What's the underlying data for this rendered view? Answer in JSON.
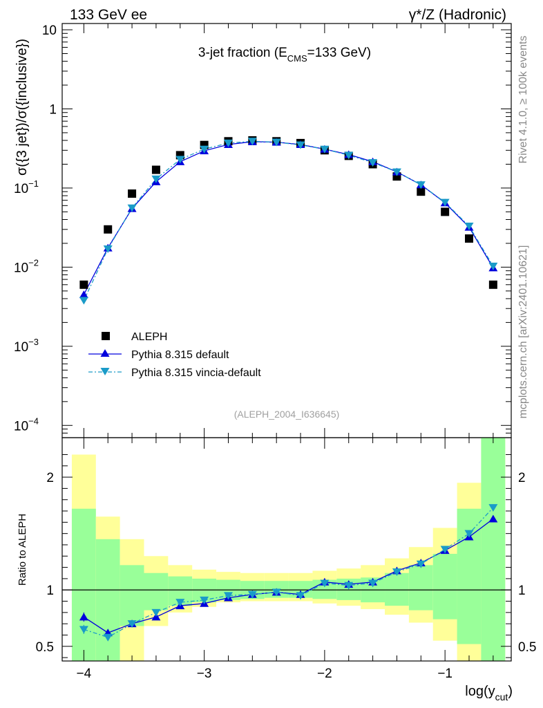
{
  "header": {
    "left": "133 GeV ee",
    "right": "γ*/Z (Hadronic)"
  },
  "side_labels": {
    "rivet": "Rivet 4.1.0, ≥ 100k events",
    "mcplots": "mcplots.cern.ch [arXiv:2401.10621]"
  },
  "chart_data": [
    {
      "type": "scatter",
      "title": "3-jet fraction (E",
      "title_sub": "CMS",
      "title_tail": "=133 GeV)",
      "ylabel": "σ({3 jet})/σ({inclusive})",
      "yscale": "log",
      "ylim": [
        7e-05,
        12
      ],
      "xlim": [
        -4.18,
        -0.45
      ],
      "analysis_tag": "(ALEPH_2004_I636645)",
      "y_ticks": [
        {
          "value": 10,
          "label": "10"
        },
        {
          "value": 1,
          "label": "1"
        },
        {
          "value": 0.1,
          "label": "10",
          "exp": "−1"
        },
        {
          "value": 0.01,
          "label": "10",
          "exp": "−2"
        },
        {
          "value": 0.001,
          "label": "10",
          "exp": "−3"
        },
        {
          "value": 0.0001,
          "label": "10",
          "exp": "−4"
        }
      ],
      "legend_position": "lower-left",
      "x": [
        -4.0,
        -3.8,
        -3.6,
        -3.4,
        -3.2,
        -3.0,
        -2.8,
        -2.6,
        -2.4,
        -2.2,
        -2.0,
        -1.8,
        -1.6,
        -1.4,
        -1.2,
        -1.0,
        -0.8,
        -0.6
      ],
      "series": [
        {
          "name": "ALEPH",
          "marker": "square",
          "color": "#000000",
          "values": [
            0.006,
            0.03,
            0.085,
            0.17,
            0.26,
            0.35,
            0.39,
            0.4,
            0.39,
            0.37,
            0.3,
            0.255,
            0.2,
            0.14,
            0.09,
            0.05,
            0.023,
            0.006
          ]
        },
        {
          "name": "Pythia 8.315 default",
          "marker": "triangle-up",
          "line": "solid",
          "color": "#0000dd",
          "values": [
            0.0045,
            0.0175,
            0.055,
            0.12,
            0.215,
            0.295,
            0.355,
            0.385,
            0.38,
            0.355,
            0.31,
            0.265,
            0.215,
            0.16,
            0.11,
            0.065,
            0.032,
            0.0098
          ]
        },
        {
          "name": "Pythia 8.315 vincia-default",
          "marker": "triangle-down",
          "line": "dashdot",
          "color": "#1a9bc8",
          "values": [
            0.0038,
            0.017,
            0.056,
            0.13,
            0.23,
            0.31,
            0.37,
            0.39,
            0.38,
            0.35,
            0.31,
            0.26,
            0.21,
            0.16,
            0.11,
            0.066,
            0.033,
            0.0103
          ]
        }
      ]
    },
    {
      "type": "line",
      "ylabel": "Ratio to ALEPH",
      "xlabel": "log(y",
      "xlabel_sub": "cut",
      "xlabel_tail": ")",
      "ylim": [
        0.37,
        2.35
      ],
      "xlim": [
        -4.18,
        -0.45
      ],
      "x_ticks": [
        {
          "value": -4,
          "label": "−4"
        },
        {
          "value": -3,
          "label": "−3"
        },
        {
          "value": -2,
          "label": "−2"
        },
        {
          "value": -1,
          "label": "−1"
        }
      ],
      "y_ticks": [
        {
          "value": 2,
          "label": "2"
        },
        {
          "value": 1,
          "label": "1"
        },
        {
          "value": 0.5,
          "label": "0.5"
        }
      ],
      "reference_line": 1,
      "bin_edges": [
        -4.1,
        -3.9,
        -3.7,
        -3.5,
        -3.3,
        -3.1,
        -2.9,
        -2.7,
        -2.5,
        -2.3,
        -2.1,
        -1.9,
        -1.7,
        -1.5,
        -1.3,
        -1.1,
        -0.9,
        -0.7,
        -0.5
      ],
      "band_green": {
        "low": [
          0.37,
          0.37,
          0.68,
          0.82,
          0.86,
          0.89,
          0.91,
          0.92,
          0.93,
          0.93,
          0.92,
          0.91,
          0.89,
          0.86,
          0.82,
          0.74,
          0.52,
          0.37
        ],
        "high": [
          1.72,
          1.45,
          1.22,
          1.15,
          1.12,
          1.1,
          1.09,
          1.08,
          1.08,
          1.08,
          1.09,
          1.1,
          1.11,
          1.15,
          1.22,
          1.32,
          1.72,
          2.35
        ]
      },
      "band_yellow": {
        "low": [
          0.37,
          0.37,
          0.37,
          0.68,
          0.8,
          0.85,
          0.89,
          0.9,
          0.9,
          0.9,
          0.88,
          0.86,
          0.83,
          0.78,
          0.71,
          0.55,
          0.37,
          0.37
        ],
        "high": [
          2.2,
          1.65,
          1.45,
          1.3,
          1.22,
          1.18,
          1.16,
          1.15,
          1.15,
          1.15,
          1.17,
          1.19,
          1.22,
          1.28,
          1.38,
          1.55,
          1.95,
          2.35
        ]
      },
      "series": [
        {
          "name": "Pythia 8.315 default",
          "color": "#0000dd",
          "values": [
            0.76,
            0.62,
            0.7,
            0.76,
            0.86,
            0.88,
            0.93,
            0.96,
            0.98,
            0.96,
            1.07,
            1.05,
            1.07,
            1.17,
            1.24,
            1.35,
            1.47,
            1.63
          ],
          "errors": [
            0.04,
            0.01,
            0.01,
            0.01,
            0.01,
            0.01,
            0.01,
            0.01,
            0.01,
            0.01,
            0.01,
            0.01,
            0.01,
            0.01,
            0.01,
            0.01,
            0.02,
            0.02
          ]
        },
        {
          "name": "Pythia 8.315 vincia-default",
          "color": "#1a9bc8",
          "values": [
            0.65,
            0.58,
            0.7,
            0.8,
            0.89,
            0.91,
            0.95,
            0.96,
            0.98,
            0.95,
            1.06,
            1.04,
            1.06,
            1.16,
            1.23,
            1.36,
            1.5,
            1.73
          ],
          "errors": [
            0.04,
            0.01,
            0.01,
            0.01,
            0.01,
            0.01,
            0.01,
            0.01,
            0.01,
            0.01,
            0.01,
            0.01,
            0.01,
            0.01,
            0.01,
            0.01,
            0.02,
            0.02
          ]
        }
      ]
    }
  ]
}
